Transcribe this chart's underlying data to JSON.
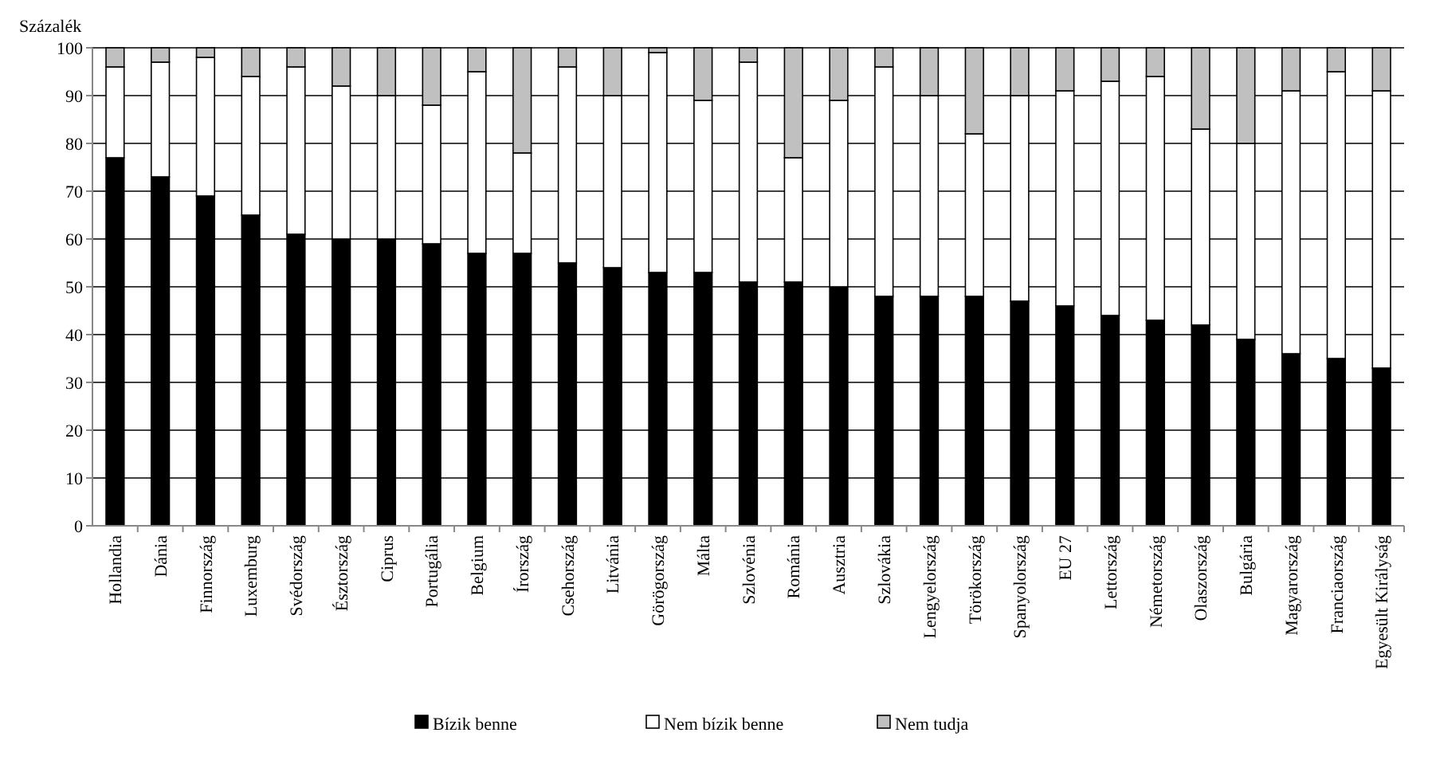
{
  "chart_data": {
    "type": "bar",
    "stacked": true,
    "ylabel": "Százalék",
    "categories": [
      "Hollandia",
      "Dánia",
      "Finnország",
      "Luxemburg",
      "Svédország",
      "Észtország",
      "Ciprus",
      "Portugália",
      "Belgium",
      "Írország",
      "Csehország",
      "Litvánia",
      "Görögország",
      "Málta",
      "Szlovénia",
      "Románia",
      "Ausztria",
      "Szlovákia",
      "Lengyelország",
      "Törökország",
      "Spanyolország",
      "EU 27",
      "Lettország",
      "Németország",
      "Olaszország",
      "Bulgária",
      "Magyarország",
      "Franciaország",
      "Egyesült Királyság"
    ],
    "series": [
      {
        "name": "Bízik benne",
        "color": "#000000",
        "values": [
          77,
          73,
          69,
          65,
          61,
          60,
          60,
          59,
          57,
          57,
          55,
          54,
          53,
          53,
          51,
          51,
          50,
          48,
          48,
          48,
          47,
          46,
          44,
          43,
          42,
          39,
          36,
          35,
          33
        ]
      },
      {
        "name": "Nem bízik benne",
        "color": "#ffffff",
        "values": [
          19,
          24,
          29,
          29,
          35,
          32,
          30,
          29,
          38,
          21,
          41,
          36,
          46,
          36,
          46,
          26,
          39,
          48,
          42,
          34,
          43,
          45,
          49,
          51,
          41,
          41,
          55,
          60,
          58
        ]
      },
      {
        "name": "Nem tudja",
        "color": "#c0c0c0",
        "values": [
          4,
          3,
          2,
          6,
          4,
          8,
          10,
          12,
          5,
          22,
          4,
          10,
          1,
          11,
          3,
          23,
          11,
          4,
          10,
          18,
          10,
          9,
          7,
          6,
          17,
          20,
          9,
          5,
          9
        ]
      }
    ],
    "ylim": [
      0,
      100
    ],
    "yticks": [
      0,
      10,
      20,
      30,
      40,
      50,
      60,
      70,
      80,
      90,
      100
    ],
    "grid": "y",
    "legend": "bottom"
  }
}
